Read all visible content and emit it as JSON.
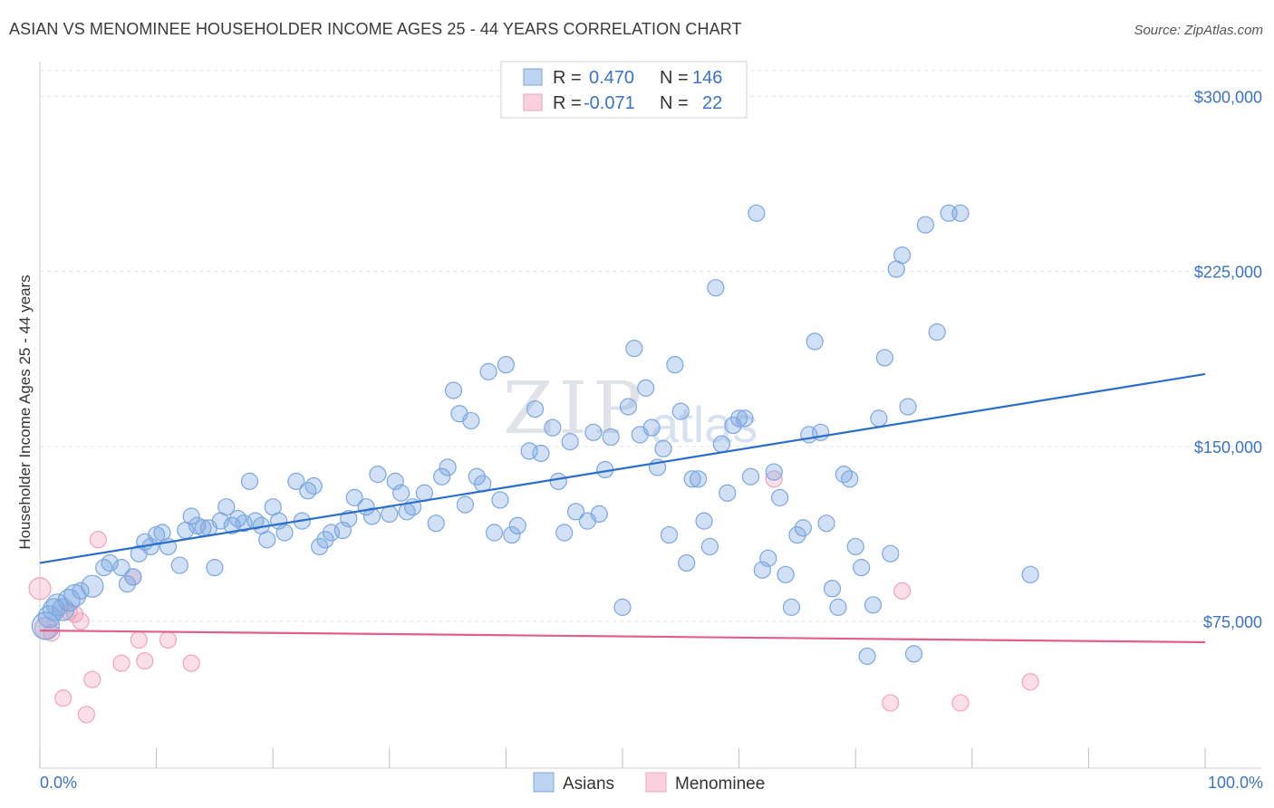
{
  "title": "ASIAN VS MENOMINEE HOUSEHOLDER INCOME AGES 25 - 44 YEARS CORRELATION CHART",
  "source": "Source: ZipAtlas.com",
  "watermark": {
    "zip": "ZIP",
    "atlas": "atlas"
  },
  "legend": {
    "r_label": "R =",
    "n_label": "N =",
    "rows": [
      {
        "r": "0.470",
        "n": "146"
      },
      {
        "r": "-0.071",
        "n": "22"
      }
    ]
  },
  "colors": {
    "asian": "#7aa7e0",
    "asian_line": "#2a6dcc",
    "menominee": "#f0a3bd",
    "menominee_line": "#e0608a"
  },
  "chart_data": {
    "type": "scatter",
    "xlabel": "",
    "ylabel": "Householder Income Ages 25 - 44 years",
    "xlim": [
      0,
      100
    ],
    "ylim": [
      12000,
      315000
    ],
    "x_tick_labels": [
      "0.0%",
      "100.0%"
    ],
    "y_ticks": [
      75000,
      150000,
      225000,
      300000
    ],
    "y_tick_labels": [
      "$75,000",
      "$150,000",
      "$225,000",
      "$300,000"
    ],
    "legend_position": "top-center",
    "series": [
      {
        "name": "Asians",
        "trend": {
          "x": [
            0,
            100
          ],
          "y": [
            100000,
            181000
          ]
        },
        "points": [
          [
            0.5,
            73000,
            3
          ],
          [
            0.8,
            77000,
            2
          ],
          [
            1.2,
            80000,
            2
          ],
          [
            1.5,
            82000,
            2
          ],
          [
            2,
            80000,
            2
          ],
          [
            2.5,
            84000,
            2
          ],
          [
            3,
            86000,
            2
          ],
          [
            3.5,
            88000,
            1
          ],
          [
            4.5,
            90000,
            2
          ],
          [
            5.5,
            98000,
            1
          ],
          [
            6,
            100000,
            1
          ],
          [
            7,
            98000,
            1
          ],
          [
            7.5,
            91000,
            1
          ],
          [
            8,
            94000,
            1
          ],
          [
            8.5,
            104000,
            1
          ],
          [
            9,
            109000,
            1
          ],
          [
            9.5,
            107000,
            1
          ],
          [
            10,
            112000,
            1
          ],
          [
            10.5,
            113000,
            1
          ],
          [
            11,
            107000,
            1
          ],
          [
            12,
            99000,
            1
          ],
          [
            12.5,
            114000,
            1
          ],
          [
            13,
            120000,
            1
          ],
          [
            13.5,
            116000,
            1
          ],
          [
            14,
            115000,
            1
          ],
          [
            14.5,
            115000,
            1
          ],
          [
            15,
            98000,
            1
          ],
          [
            15.5,
            118000,
            1
          ],
          [
            16,
            124000,
            1
          ],
          [
            16.5,
            116000,
            1
          ],
          [
            17,
            119000,
            1
          ],
          [
            17.5,
            117000,
            1
          ],
          [
            18,
            135000,
            1
          ],
          [
            18.5,
            118000,
            1
          ],
          [
            19,
            116000,
            1
          ],
          [
            19.5,
            110000,
            1
          ],
          [
            20,
            124000,
            1
          ],
          [
            20.5,
            118000,
            1
          ],
          [
            21,
            113000,
            1
          ],
          [
            22,
            135000,
            1
          ],
          [
            22.5,
            118000,
            1
          ],
          [
            23,
            131000,
            1
          ],
          [
            23.5,
            133000,
            1
          ],
          [
            24,
            107000,
            1
          ],
          [
            24.5,
            110000,
            1
          ],
          [
            25,
            113000,
            1
          ],
          [
            26,
            114000,
            1
          ],
          [
            26.5,
            119000,
            1
          ],
          [
            27,
            128000,
            1
          ],
          [
            28,
            124000,
            1
          ],
          [
            28.5,
            120000,
            1
          ],
          [
            29,
            138000,
            1
          ],
          [
            30,
            121000,
            1
          ],
          [
            30.5,
            135000,
            1
          ],
          [
            31,
            130000,
            1
          ],
          [
            31.5,
            122000,
            1
          ],
          [
            32,
            124000,
            1
          ],
          [
            33,
            130000,
            1
          ],
          [
            34,
            117000,
            1
          ],
          [
            34.5,
            137000,
            1
          ],
          [
            35,
            141000,
            1
          ],
          [
            35.5,
            174000,
            1
          ],
          [
            36,
            164000,
            1
          ],
          [
            36.5,
            125000,
            1
          ],
          [
            37,
            161000,
            1
          ],
          [
            37.5,
            137000,
            1
          ],
          [
            38,
            134000,
            1
          ],
          [
            38.5,
            182000,
            1
          ],
          [
            39,
            113000,
            1
          ],
          [
            39.5,
            127000,
            1
          ],
          [
            40,
            185000,
            1
          ],
          [
            40.5,
            112000,
            1
          ],
          [
            41,
            116000,
            1
          ],
          [
            42,
            148000,
            1
          ],
          [
            42.5,
            166000,
            1
          ],
          [
            43,
            147000,
            1
          ],
          [
            44,
            158000,
            1
          ],
          [
            44.5,
            135000,
            1
          ],
          [
            45,
            113000,
            1
          ],
          [
            45.5,
            152000,
            1
          ],
          [
            46,
            122000,
            1
          ],
          [
            47,
            118000,
            1
          ],
          [
            47.5,
            156000,
            1
          ],
          [
            48,
            121000,
            1
          ],
          [
            48.5,
            140000,
            1
          ],
          [
            49,
            154000,
            1
          ],
          [
            50,
            81000,
            1
          ],
          [
            50.5,
            167000,
            1
          ],
          [
            51,
            192000,
            1
          ],
          [
            51.5,
            155000,
            1
          ],
          [
            52,
            175000,
            1
          ],
          [
            52.5,
            158000,
            1
          ],
          [
            53,
            141000,
            1
          ],
          [
            53.5,
            149000,
            1
          ],
          [
            54,
            112000,
            1
          ],
          [
            54.5,
            185000,
            1
          ],
          [
            55,
            165000,
            1
          ],
          [
            55.5,
            100000,
            1
          ],
          [
            56,
            136000,
            1
          ],
          [
            56.5,
            136000,
            1
          ],
          [
            57,
            118000,
            1
          ],
          [
            57.5,
            107000,
            1
          ],
          [
            58,
            218000,
            1
          ],
          [
            58.5,
            151000,
            1
          ],
          [
            59,
            130000,
            1
          ],
          [
            59.5,
            159000,
            1
          ],
          [
            60,
            162000,
            1
          ],
          [
            60.5,
            162000,
            1
          ],
          [
            61,
            137000,
            1
          ],
          [
            61.5,
            250000,
            1
          ],
          [
            62,
            97000,
            1
          ],
          [
            62.5,
            102000,
            1
          ],
          [
            63,
            139000,
            1
          ],
          [
            63.5,
            128000,
            1
          ],
          [
            64,
            95000,
            1
          ],
          [
            64.5,
            81000,
            1
          ],
          [
            65,
            112000,
            1
          ],
          [
            65.5,
            115000,
            1
          ],
          [
            66,
            155000,
            1
          ],
          [
            66.5,
            195000,
            1
          ],
          [
            67,
            156000,
            1
          ],
          [
            67.5,
            117000,
            1
          ],
          [
            68,
            89000,
            1
          ],
          [
            68.5,
            81000,
            1
          ],
          [
            69,
            138000,
            1
          ],
          [
            69.5,
            136000,
            1
          ],
          [
            70,
            107000,
            1
          ],
          [
            70.5,
            98000,
            1
          ],
          [
            71,
            60000,
            1
          ],
          [
            71.5,
            82000,
            1
          ],
          [
            72,
            162000,
            1
          ],
          [
            72.5,
            188000,
            1
          ],
          [
            73,
            104000,
            1
          ],
          [
            73.5,
            226000,
            1
          ],
          [
            74,
            232000,
            1
          ],
          [
            74.5,
            167000,
            1
          ],
          [
            75,
            61000,
            1
          ],
          [
            76,
            245000,
            1
          ],
          [
            77,
            199000,
            1
          ],
          [
            78,
            250000,
            1
          ],
          [
            79,
            250000,
            1
          ],
          [
            85,
            95000,
            1
          ]
        ]
      },
      {
        "name": "Menominee",
        "trend": {
          "x": [
            0,
            100
          ],
          "y": [
            71000,
            66000
          ]
        },
        "points": [
          [
            0,
            89000,
            2
          ],
          [
            0.5,
            72000,
            2
          ],
          [
            1,
            70000,
            1
          ],
          [
            2,
            42000,
            1
          ],
          [
            2.5,
            79000,
            1
          ],
          [
            3,
            78000,
            1
          ],
          [
            3.5,
            75000,
            1
          ],
          [
            4,
            35000,
            1
          ],
          [
            4.5,
            50000,
            1
          ],
          [
            5,
            110000,
            1
          ],
          [
            7,
            57000,
            1
          ],
          [
            8,
            94000,
            1
          ],
          [
            8.5,
            67000,
            1
          ],
          [
            9,
            58000,
            1
          ],
          [
            11,
            67000,
            1
          ],
          [
            13,
            57000,
            1
          ],
          [
            63,
            136000,
            1
          ],
          [
            73,
            40000,
            1
          ],
          [
            74,
            88000,
            1
          ],
          [
            79,
            40000,
            1
          ],
          [
            85,
            49000,
            1
          ]
        ]
      }
    ]
  },
  "bottom_legend": [
    {
      "label": "Asians"
    },
    {
      "label": "Menominee"
    }
  ]
}
